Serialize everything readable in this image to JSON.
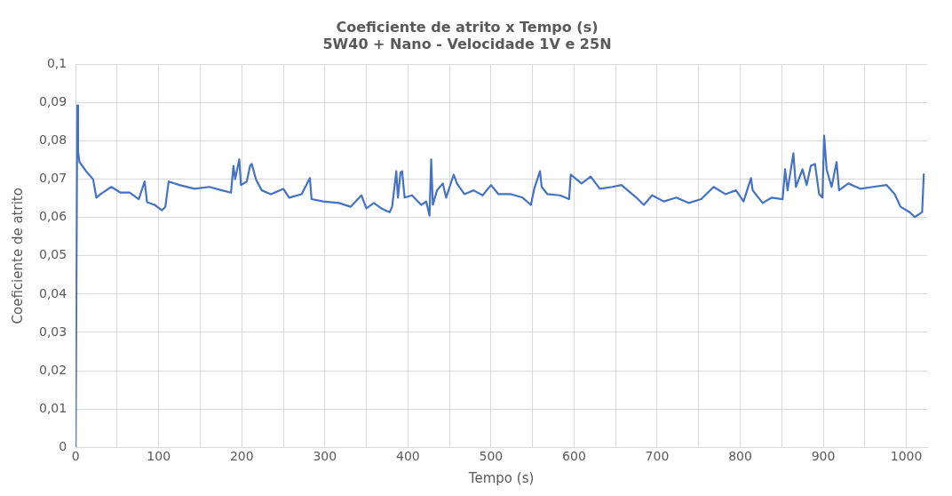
{
  "chart_data": {
    "type": "line",
    "title": "Coeficiente de atrito x Tempo (s)",
    "subtitle": "5W40 + Nano - Velocidade 1V e 25N",
    "xlabel": "Tempo (s)",
    "ylabel": "Coeficiente de atrito",
    "x": [
      0,
      2,
      3,
      4.6,
      14,
      21,
      25,
      30,
      43,
      54,
      65,
      76,
      83,
      86,
      95,
      104,
      108,
      112,
      125,
      143,
      161,
      176,
      187,
      190,
      192,
      197,
      199,
      206,
      210,
      212,
      217,
      224,
      235,
      250,
      257,
      272,
      282,
      284,
      298,
      317,
      331,
      344,
      350,
      359,
      368,
      378,
      381,
      386,
      388,
      391,
      393,
      396,
      405,
      416,
      422,
      426,
      428,
      430,
      435,
      442,
      446,
      455,
      459,
      468,
      479,
      490,
      500,
      509,
      524,
      538,
      548,
      552,
      559,
      561,
      568,
      583,
      594,
      596,
      609,
      620,
      631,
      646,
      657,
      675,
      684,
      694,
      708,
      723,
      738,
      753,
      768,
      782,
      795,
      804,
      813,
      815,
      827,
      838,
      851,
      854,
      857,
      864,
      867,
      875,
      880,
      885,
      890,
      895,
      899,
      901,
      904,
      910,
      916,
      919,
      930,
      945,
      960,
      976,
      986,
      993,
      1004,
      1010,
      1019,
      1021
    ],
    "series": [
      {
        "color": "#4472c4",
        "values": [
          0,
          0.0893,
          0.0772,
          0.0745,
          0.0717,
          0.07,
          0.0652,
          0.0661,
          0.068,
          0.0665,
          0.0665,
          0.0648,
          0.0694,
          0.064,
          0.0633,
          0.0619,
          0.0628,
          0.0694,
          0.0685,
          0.0675,
          0.068,
          0.0671,
          0.0665,
          0.0735,
          0.07,
          0.0752,
          0.0685,
          0.0694,
          0.0735,
          0.074,
          0.07,
          0.0671,
          0.0661,
          0.0675,
          0.0652,
          0.0661,
          0.0703,
          0.0648,
          0.0642,
          0.0638,
          0.0628,
          0.0658,
          0.0624,
          0.0638,
          0.0624,
          0.0614,
          0.0628,
          0.0721,
          0.0652,
          0.0717,
          0.0721,
          0.0652,
          0.0658,
          0.0633,
          0.0642,
          0.0605,
          0.0752,
          0.0633,
          0.0671,
          0.0689,
          0.0652,
          0.0712,
          0.0689,
          0.0661,
          0.0671,
          0.0658,
          0.0685,
          0.0661,
          0.0661,
          0.0652,
          0.0633,
          0.0675,
          0.0721,
          0.068,
          0.0661,
          0.0658,
          0.0648,
          0.0712,
          0.0689,
          0.0707,
          0.0675,
          0.068,
          0.0685,
          0.0652,
          0.0633,
          0.0658,
          0.0642,
          0.0652,
          0.0638,
          0.0648,
          0.068,
          0.0661,
          0.0671,
          0.0642,
          0.0703,
          0.0671,
          0.0638,
          0.0652,
          0.0648,
          0.0726,
          0.0671,
          0.0768,
          0.068,
          0.0726,
          0.0685,
          0.0735,
          0.074,
          0.0661,
          0.0652,
          0.0814,
          0.0726,
          0.068,
          0.0745,
          0.0671,
          0.0689,
          0.0675,
          0.068,
          0.0685,
          0.0661,
          0.0628,
          0.0614,
          0.0601,
          0.0614,
          0.0715
        ]
      }
    ],
    "xlim": [
      0,
      1025
    ],
    "xticks": [
      0,
      {
        "value": 50,
        "label": null
      },
      100,
      {
        "value": 150,
        "label": null
      },
      200,
      {
        "value": 250,
        "label": null
      },
      300,
      {
        "value": 350,
        "label": null
      },
      400,
      {
        "value": 450,
        "label": null
      },
      500,
      {
        "value": 550,
        "label": null
      },
      600,
      {
        "value": 650,
        "label": null
      },
      700,
      {
        "value": 750,
        "label": null
      },
      800,
      {
        "value": 850,
        "label": null
      },
      900,
      {
        "value": 950,
        "label": null
      },
      1000
    ],
    "ylim": [
      0,
      0.1
    ],
    "yticks": [
      0,
      {
        "value": 0.01,
        "label": "0,01"
      },
      {
        "value": 0.02,
        "label": "0,02"
      },
      {
        "value": 0.03,
        "label": "0,03"
      },
      {
        "value": 0.04,
        "label": "0,04"
      },
      {
        "value": 0.05,
        "label": "0,05"
      },
      {
        "value": 0.06,
        "label": "0,06"
      },
      {
        "value": 0.07,
        "label": "0,07"
      },
      {
        "value": 0.08,
        "label": "0,08"
      },
      {
        "value": 0.09,
        "label": "0,09"
      },
      {
        "value": 0.1,
        "label": "0,1"
      }
    ],
    "grid": true
  }
}
